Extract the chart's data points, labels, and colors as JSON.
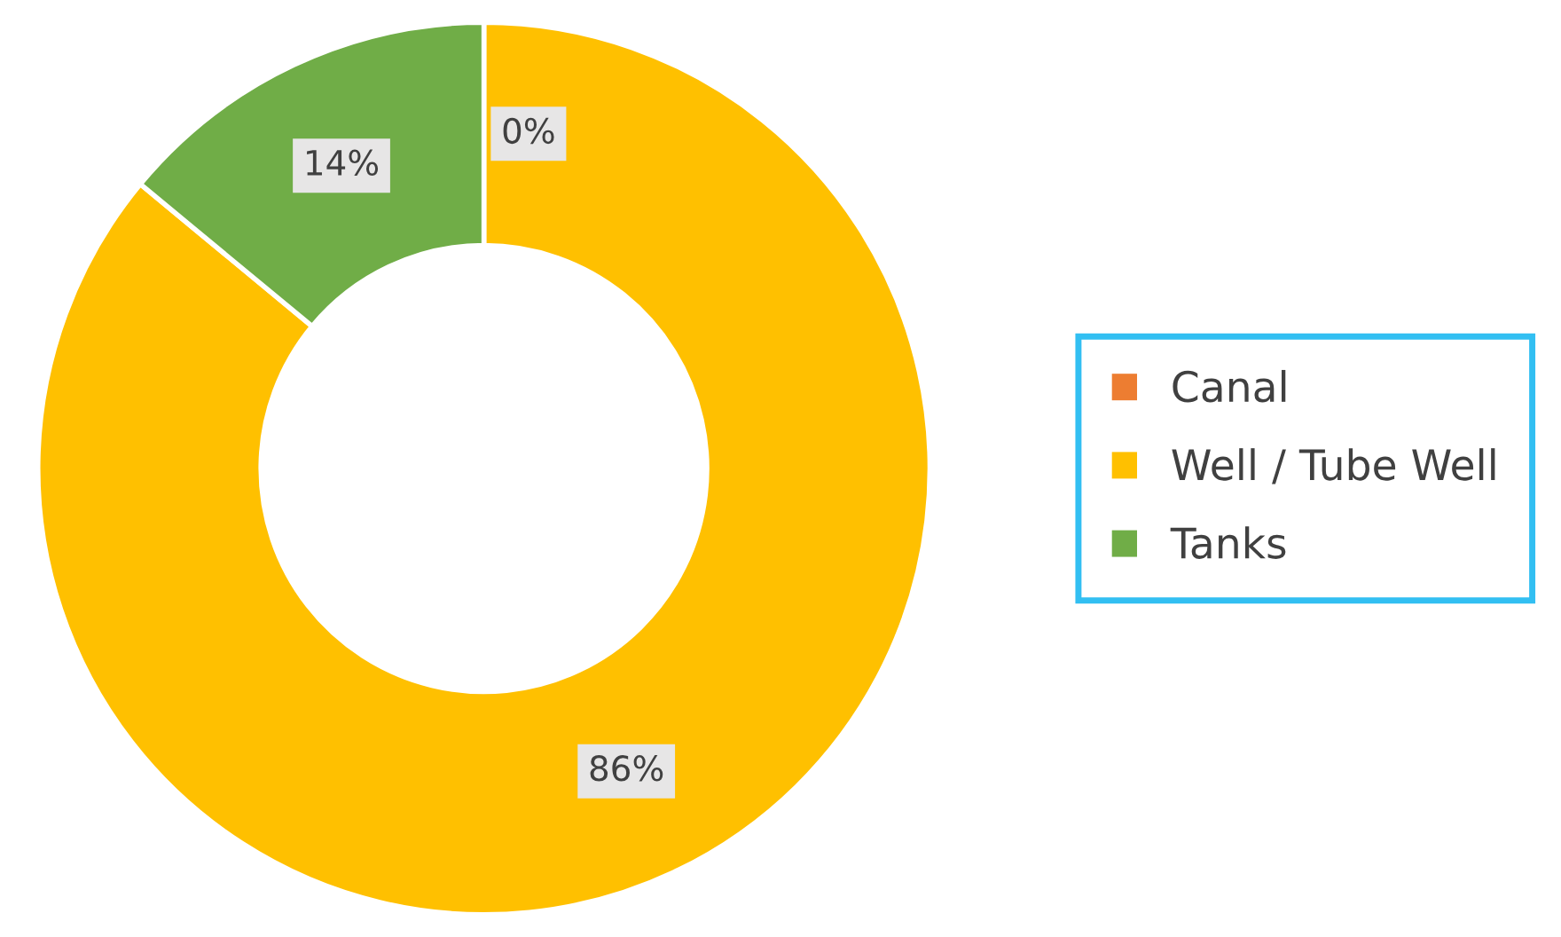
{
  "chart_data": {
    "type": "donut",
    "categories": [
      "Canal",
      "Well / Tube Well",
      "Tanks"
    ],
    "values": [
      0,
      86,
      14
    ],
    "colors": [
      "#ed7d31",
      "#ffc000",
      "#70ad47"
    ],
    "value_labels": [
      "0%",
      "86%",
      "14%"
    ],
    "legend": "right"
  }
}
